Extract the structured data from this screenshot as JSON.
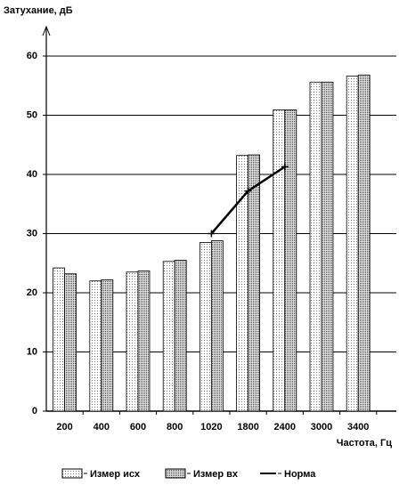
{
  "chart_data": {
    "type": "bar",
    "title": "Затухание, дБ",
    "x_label": "Частота, Гц",
    "categories": [
      "200",
      "400",
      "600",
      "800",
      "1020",
      "1800",
      "2400",
      "3000",
      "3400"
    ],
    "series": [
      {
        "name": "Измер исх",
        "color": "#f2f2f2",
        "type": "bar",
        "values": [
          24.2,
          22.0,
          23.5,
          25.3,
          28.5,
          43.2,
          50.9,
          55.6,
          56.6
        ]
      },
      {
        "name": "Измер вх",
        "color": "#b8b8b8",
        "type": "bar",
        "values": [
          23.2,
          22.2,
          23.7,
          25.5,
          28.8,
          43.3,
          50.9,
          55.6,
          56.8
        ]
      },
      {
        "name": "Норма",
        "color": "#000000",
        "type": "line",
        "values": [
          null,
          null,
          null,
          null,
          30,
          37.2,
          41.3,
          null,
          null
        ]
      }
    ],
    "ylim": [
      0,
      60
    ],
    "yticks": [
      0,
      10,
      20,
      30,
      40,
      50,
      60
    ],
    "grid": true
  }
}
